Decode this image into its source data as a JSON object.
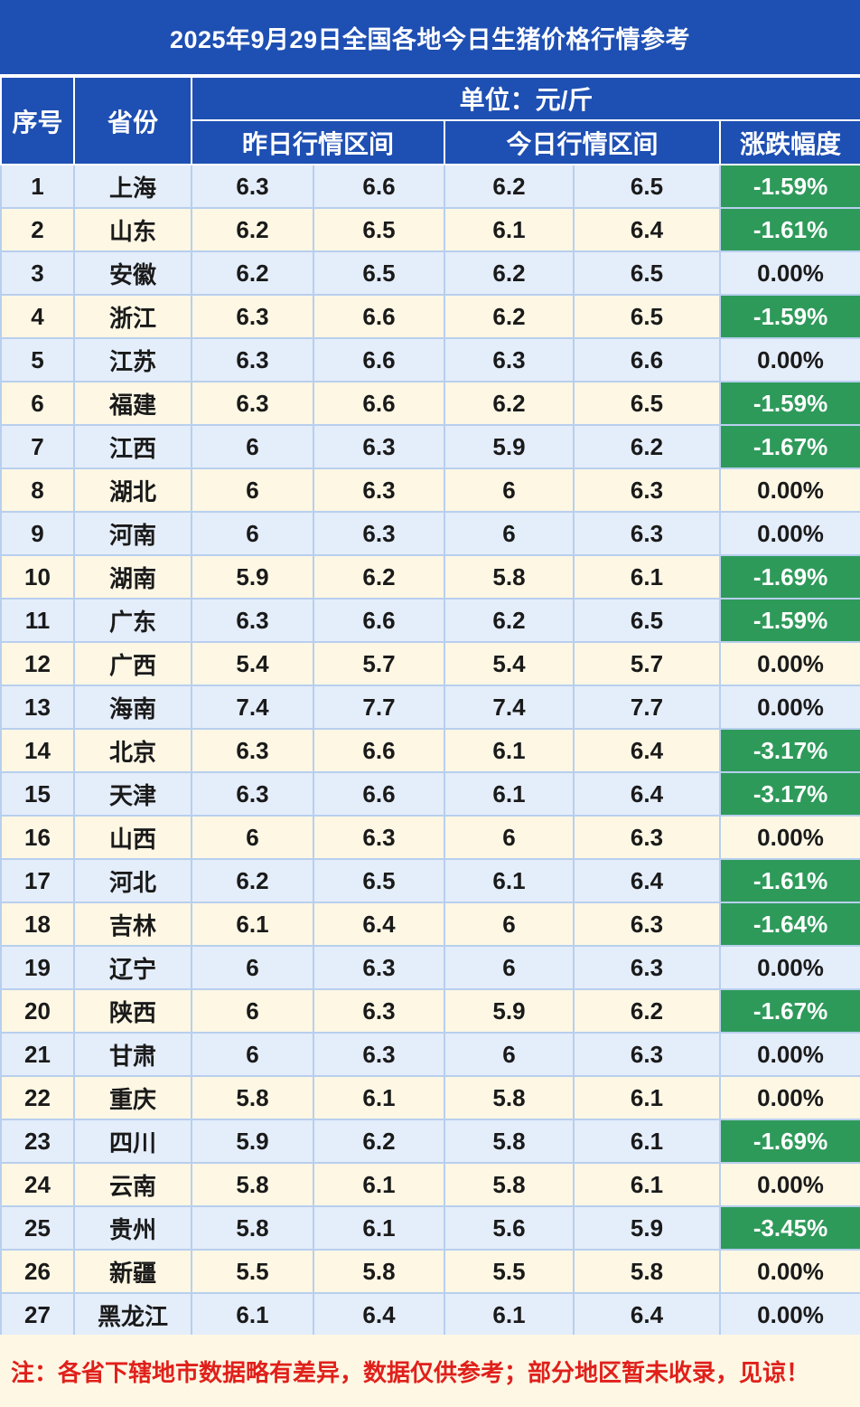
{
  "title": "2025年9月29日全国各地今日生猪价格行情参考",
  "headers": {
    "index": "序号",
    "province": "省份",
    "unit": "单位：元/斤",
    "yesterday": "昨日行情区间",
    "today": "今日行情区间",
    "change": "涨跌幅度"
  },
  "rows": [
    {
      "idx": "1",
      "province": "上海",
      "y_low": "6.3",
      "y_high": "6.6",
      "t_low": "6.2",
      "t_high": "6.5",
      "change": "-1.59%"
    },
    {
      "idx": "2",
      "province": "山东",
      "y_low": "6.2",
      "y_high": "6.5",
      "t_low": "6.1",
      "t_high": "6.4",
      "change": "-1.61%"
    },
    {
      "idx": "3",
      "province": "安徽",
      "y_low": "6.2",
      "y_high": "6.5",
      "t_low": "6.2",
      "t_high": "6.5",
      "change": "0.00%"
    },
    {
      "idx": "4",
      "province": "浙江",
      "y_low": "6.3",
      "y_high": "6.6",
      "t_low": "6.2",
      "t_high": "6.5",
      "change": "-1.59%"
    },
    {
      "idx": "5",
      "province": "江苏",
      "y_low": "6.3",
      "y_high": "6.6",
      "t_low": "6.3",
      "t_high": "6.6",
      "change": "0.00%"
    },
    {
      "idx": "6",
      "province": "福建",
      "y_low": "6.3",
      "y_high": "6.6",
      "t_low": "6.2",
      "t_high": "6.5",
      "change": "-1.59%"
    },
    {
      "idx": "7",
      "province": "江西",
      "y_low": "6",
      "y_high": "6.3",
      "t_low": "5.9",
      "t_high": "6.2",
      "change": "-1.67%"
    },
    {
      "idx": "8",
      "province": "湖北",
      "y_low": "6",
      "y_high": "6.3",
      "t_low": "6",
      "t_high": "6.3",
      "change": "0.00%"
    },
    {
      "idx": "9",
      "province": "河南",
      "y_low": "6",
      "y_high": "6.3",
      "t_low": "6",
      "t_high": "6.3",
      "change": "0.00%"
    },
    {
      "idx": "10",
      "province": "湖南",
      "y_low": "5.9",
      "y_high": "6.2",
      "t_low": "5.8",
      "t_high": "6.1",
      "change": "-1.69%"
    },
    {
      "idx": "11",
      "province": "广东",
      "y_low": "6.3",
      "y_high": "6.6",
      "t_low": "6.2",
      "t_high": "6.5",
      "change": "-1.59%"
    },
    {
      "idx": "12",
      "province": "广西",
      "y_low": "5.4",
      "y_high": "5.7",
      "t_low": "5.4",
      "t_high": "5.7",
      "change": "0.00%"
    },
    {
      "idx": "13",
      "province": "海南",
      "y_low": "7.4",
      "y_high": "7.7",
      "t_low": "7.4",
      "t_high": "7.7",
      "change": "0.00%"
    },
    {
      "idx": "14",
      "province": "北京",
      "y_low": "6.3",
      "y_high": "6.6",
      "t_low": "6.1",
      "t_high": "6.4",
      "change": "-3.17%"
    },
    {
      "idx": "15",
      "province": "天津",
      "y_low": "6.3",
      "y_high": "6.6",
      "t_low": "6.1",
      "t_high": "6.4",
      "change": "-3.17%"
    },
    {
      "idx": "16",
      "province": "山西",
      "y_low": "6",
      "y_high": "6.3",
      "t_low": "6",
      "t_high": "6.3",
      "change": "0.00%"
    },
    {
      "idx": "17",
      "province": "河北",
      "y_low": "6.2",
      "y_high": "6.5",
      "t_low": "6.1",
      "t_high": "6.4",
      "change": "-1.61%"
    },
    {
      "idx": "18",
      "province": "吉林",
      "y_low": "6.1",
      "y_high": "6.4",
      "t_low": "6",
      "t_high": "6.3",
      "change": "-1.64%"
    },
    {
      "idx": "19",
      "province": "辽宁",
      "y_low": "6",
      "y_high": "6.3",
      "t_low": "6",
      "t_high": "6.3",
      "change": "0.00%"
    },
    {
      "idx": "20",
      "province": "陕西",
      "y_low": "6",
      "y_high": "6.3",
      "t_low": "5.9",
      "t_high": "6.2",
      "change": "-1.67%"
    },
    {
      "idx": "21",
      "province": "甘肃",
      "y_low": "6",
      "y_high": "6.3",
      "t_low": "6",
      "t_high": "6.3",
      "change": "0.00%"
    },
    {
      "idx": "22",
      "province": "重庆",
      "y_low": "5.8",
      "y_high": "6.1",
      "t_low": "5.8",
      "t_high": "6.1",
      "change": "0.00%"
    },
    {
      "idx": "23",
      "province": "四川",
      "y_low": "5.9",
      "y_high": "6.2",
      "t_low": "5.8",
      "t_high": "6.1",
      "change": "-1.69%"
    },
    {
      "idx": "24",
      "province": "云南",
      "y_low": "5.8",
      "y_high": "6.1",
      "t_low": "5.8",
      "t_high": "6.1",
      "change": "0.00%"
    },
    {
      "idx": "25",
      "province": "贵州",
      "y_low": "5.8",
      "y_high": "6.1",
      "t_low": "5.6",
      "t_high": "5.9",
      "change": "-3.45%"
    },
    {
      "idx": "26",
      "province": "新疆",
      "y_low": "5.5",
      "y_high": "5.8",
      "t_low": "5.5",
      "t_high": "5.8",
      "change": "0.00%"
    },
    {
      "idx": "27",
      "province": "黑龙江",
      "y_low": "6.1",
      "y_high": "6.4",
      "t_low": "6.1",
      "t_high": "6.4",
      "change": "0.00%"
    }
  ],
  "note": "注：各省下辖地市数据略有差异，数据仅供参考；部分地区暂未收录，见谅！",
  "colors": {
    "header_blue": "#1e4fb3",
    "decline_green": "#2e9a5a",
    "note_red": "#e0201b",
    "row_blue": "#e4edfa",
    "row_cream": "#fdf7e4"
  }
}
